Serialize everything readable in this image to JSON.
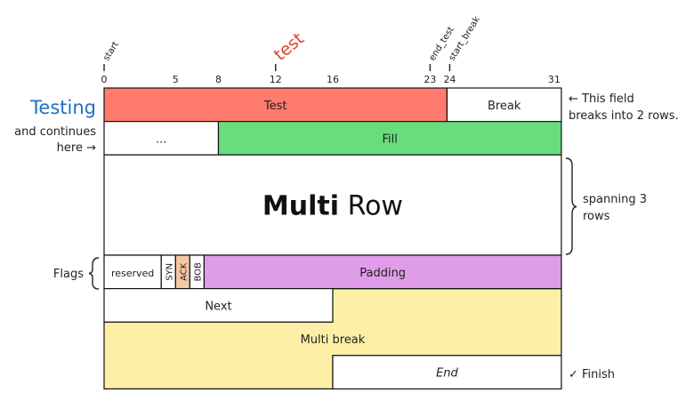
{
  "diagram": {
    "bit_ticks": [
      {
        "bit": 0,
        "label": "0"
      },
      {
        "bit": 5,
        "label": "5"
      },
      {
        "bit": 8,
        "label": "8"
      },
      {
        "bit": 12,
        "label": "12"
      },
      {
        "bit": 16,
        "label": "16"
      },
      {
        "bit": 23,
        "label": "23"
      },
      {
        "bit": 24,
        "label": "24"
      },
      {
        "bit": 31,
        "label": "31"
      }
    ],
    "markers": [
      {
        "bit": 0,
        "label": "start",
        "color": "#222222",
        "size": "small"
      },
      {
        "bit": 12,
        "label": "test",
        "color": "#e8402a",
        "size": "large"
      },
      {
        "bit": 23,
        "label": "end_test",
        "color": "#222222",
        "size": "small"
      },
      {
        "bit": 24,
        "label": "start_break",
        "color": "#222222",
        "size": "small"
      }
    ],
    "fields": [
      {
        "id": "test",
        "label": "Test",
        "row": 0,
        "rows": 1,
        "start": 0,
        "end": 23,
        "fill": "#ff7b6d"
      },
      {
        "id": "break",
        "label": "Break",
        "row": 0,
        "rows": 1,
        "start": 24,
        "end": 31,
        "fill": "#ffffff"
      },
      {
        "id": "ellipsis",
        "label": "...",
        "row": 1,
        "rows": 1,
        "start": 0,
        "end": 7,
        "fill": "#ffffff"
      },
      {
        "id": "fill",
        "label": "Fill",
        "row": 1,
        "rows": 1,
        "start": 8,
        "end": 31,
        "fill": "#69dc7b"
      },
      {
        "id": "multi-row",
        "label": "Multi",
        "label_suffix": " Row",
        "row": 2,
        "rows": 3,
        "start": 0,
        "end": 31,
        "fill": "#ffffff",
        "big": true
      },
      {
        "id": "reserved",
        "label": "reserved",
        "row": 5,
        "rows": 1,
        "start": 0,
        "end": 3,
        "fill": "#ffffff",
        "small": true
      },
      {
        "id": "syn",
        "label": "SYN",
        "row": 5,
        "rows": 1,
        "start": 4,
        "end": 4,
        "fill": "#ffffff",
        "vertical": true
      },
      {
        "id": "ack",
        "label": "ACK",
        "row": 5,
        "rows": 1,
        "start": 5,
        "end": 5,
        "fill": "#f5c8a4",
        "vertical": true
      },
      {
        "id": "bob",
        "label": "BOB",
        "row": 5,
        "rows": 1,
        "start": 6,
        "end": 6,
        "fill": "#ffffff",
        "vertical": true
      },
      {
        "id": "padding",
        "label": "Padding",
        "row": 5,
        "rows": 1,
        "start": 7,
        "end": 31,
        "fill": "#df9ce8"
      },
      {
        "id": "next",
        "label": "Next",
        "row": 6,
        "rows": 1,
        "start": 0,
        "end": 15,
        "fill": "#ffffff"
      },
      {
        "id": "end",
        "label": "End",
        "row": 8,
        "rows": 1,
        "start": 16,
        "end": 31,
        "fill": "#ffffff",
        "italic": true
      }
    ],
    "multi_break": {
      "label": "Multi break",
      "fill": "#fdf0a6",
      "first_row": 6,
      "first_start": 16,
      "mid_row": 7,
      "last_row": 8,
      "last_end": 15
    },
    "left_annotations": {
      "testing": "Testing",
      "testing_color": "#1f6fc4",
      "continues_line1": "and continues",
      "continues_line2": "here →",
      "flags": "Flags"
    },
    "right_annotations": {
      "this_field_line1": "← This field",
      "this_field_line2": "breaks into 2 rows.",
      "spanning_line1": "spanning 3",
      "spanning_line2": "rows",
      "finish": "✓ Finish"
    }
  }
}
